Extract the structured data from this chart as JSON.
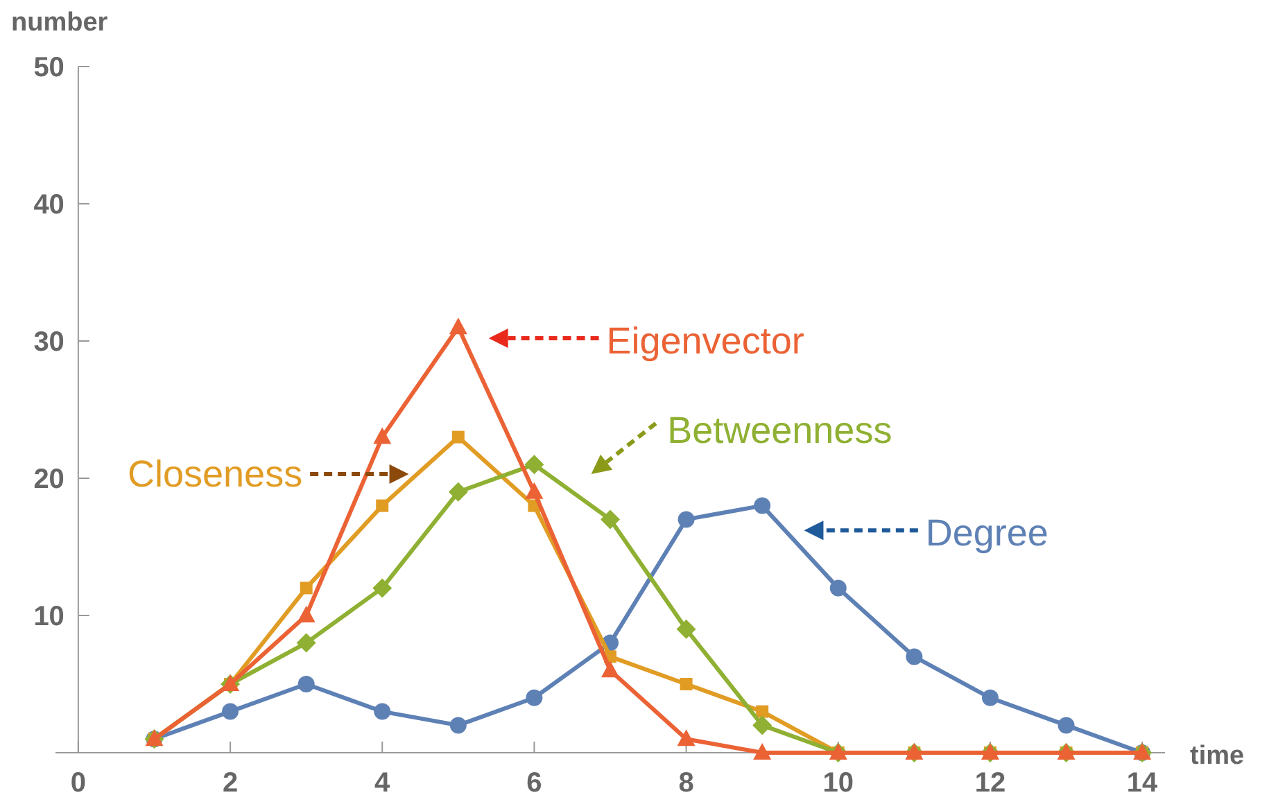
{
  "chart_data": {
    "type": "line",
    "xlabel": "time",
    "ylabel": "number",
    "x": [
      1,
      2,
      3,
      4,
      5,
      6,
      7,
      8,
      9,
      10,
      11,
      12,
      13,
      14
    ],
    "series": [
      {
        "name": "Degree",
        "color": "#5e81b5",
        "marker": "circle",
        "values": [
          1,
          3,
          5,
          3,
          2,
          4,
          8,
          17,
          18,
          12,
          7,
          4,
          2,
          0
        ]
      },
      {
        "name": "Closeness",
        "color": "#e19c24",
        "marker": "square",
        "values": [
          1,
          5,
          12,
          18,
          23,
          18,
          7,
          5,
          3,
          0,
          0,
          0,
          0,
          0
        ]
      },
      {
        "name": "Betweenness",
        "color": "#8fb032",
        "marker": "diamond",
        "values": [
          1,
          5,
          8,
          12,
          19,
          21,
          17,
          9,
          2,
          0,
          0,
          0,
          0,
          0
        ]
      },
      {
        "name": "Eigenvector",
        "color": "#eb6235",
        "marker": "triangle",
        "values": [
          1,
          5,
          10,
          23,
          31,
          19,
          6,
          1,
          0,
          0,
          0,
          0,
          0,
          0
        ]
      }
    ],
    "xlim": [
      -0.3,
      14.3
    ],
    "ylim": [
      0,
      50
    ],
    "xticks": [
      0,
      2,
      4,
      6,
      8,
      10,
      12,
      14
    ],
    "yticks": [
      {
        "value": 0,
        "label": null
      },
      10,
      20,
      30,
      40,
      50
    ],
    "grid": false,
    "line_style": "solid"
  }
}
